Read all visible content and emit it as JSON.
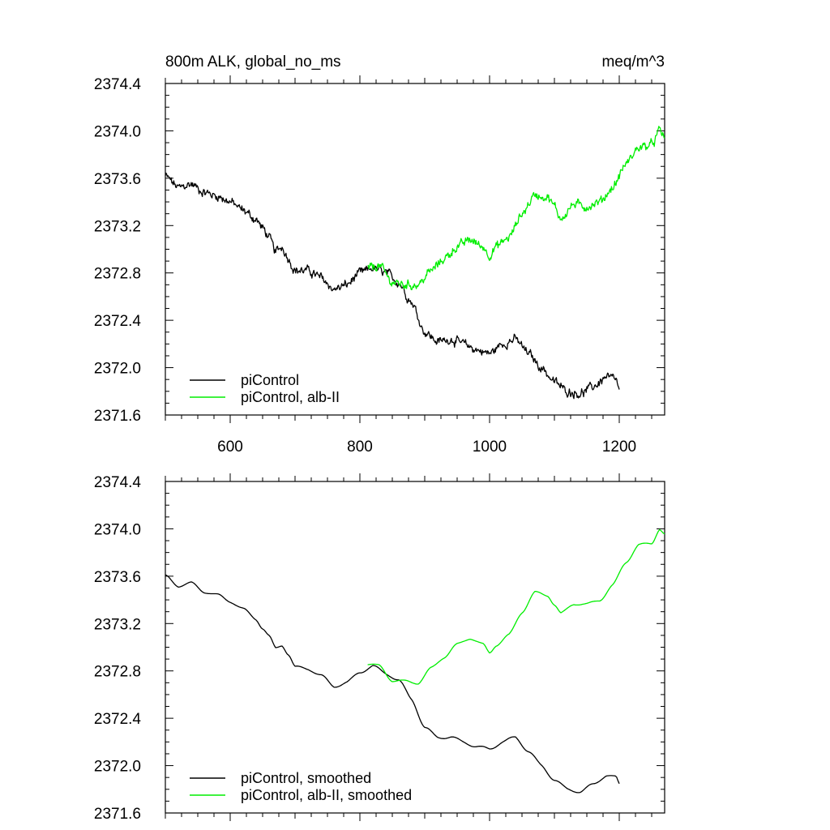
{
  "header": {
    "left": "800m ALK, global_no_ms",
    "right": "meq/m^3"
  },
  "colors": {
    "piControl": "#000000",
    "albII": "#00ee00"
  },
  "chart_data": [
    {
      "type": "line",
      "panel": "top",
      "xlim": [
        500,
        1270
      ],
      "ylim": [
        2371.6,
        2374.4
      ],
      "xticks": [
        600,
        800,
        1000,
        1200
      ],
      "xtick_labels": [
        "600",
        "800",
        "1000",
        "1200"
      ],
      "yticks": [
        2371.6,
        2372.0,
        2372.4,
        2372.8,
        2373.2,
        2373.6,
        2374.0,
        2374.4
      ],
      "ytick_labels": [
        "2371.6",
        "2372.0",
        "2372.4",
        "2372.8",
        "2373.2",
        "2373.6",
        "2374.0",
        "2374.4"
      ],
      "legend_position": "bottom-left",
      "series": [
        {
          "name": "piControl",
          "color": "#000000",
          "noisy": true,
          "x": [
            500,
            520,
            540,
            560,
            580,
            600,
            620,
            640,
            650,
            660,
            670,
            680,
            690,
            700,
            720,
            740,
            760,
            780,
            800,
            820,
            840,
            860,
            880,
            900,
            920,
            940,
            960,
            980,
            1000,
            1020,
            1040,
            1060,
            1080,
            1100,
            1120,
            1140,
            1160,
            1180,
            1195,
            1200
          ],
          "y": [
            2373.62,
            2373.52,
            2373.55,
            2373.48,
            2373.45,
            2373.4,
            2373.33,
            2373.25,
            2373.18,
            2373.1,
            2372.98,
            2373.02,
            2372.92,
            2372.82,
            2372.82,
            2372.76,
            2372.66,
            2372.7,
            2372.8,
            2372.84,
            2372.8,
            2372.72,
            2372.55,
            2372.3,
            2372.22,
            2372.24,
            2372.2,
            2372.15,
            2372.12,
            2372.2,
            2372.24,
            2372.12,
            2372.0,
            2371.88,
            2371.8,
            2371.78,
            2371.84,
            2371.92,
            2371.9,
            2371.8
          ]
        },
        {
          "name": "piControl, alb-II",
          "color": "#00ee00",
          "noisy": true,
          "x": [
            812,
            830,
            850,
            870,
            890,
            910,
            930,
            950,
            970,
            990,
            1000,
            1010,
            1030,
            1050,
            1070,
            1090,
            1100,
            1110,
            1130,
            1150,
            1170,
            1190,
            1210,
            1230,
            1250,
            1262,
            1270
          ],
          "y": [
            2372.84,
            2372.86,
            2372.72,
            2372.7,
            2372.7,
            2372.82,
            2372.92,
            2373.02,
            2373.08,
            2373.02,
            2372.95,
            2373.02,
            2373.1,
            2373.3,
            2373.46,
            2373.44,
            2373.36,
            2373.26,
            2373.38,
            2373.36,
            2373.4,
            2373.52,
            2373.72,
            2373.86,
            2373.88,
            2374.0,
            2373.94
          ]
        }
      ]
    },
    {
      "type": "line",
      "panel": "bottom",
      "xlim": [
        500,
        1270
      ],
      "ylim": [
        2371.6,
        2374.4
      ],
      "xticks": [
        600,
        800,
        1000,
        1200
      ],
      "yticks": [
        2371.6,
        2372.0,
        2372.4,
        2372.8,
        2373.2,
        2373.6,
        2374.0,
        2374.4
      ],
      "ytick_labels": [
        "2371.6",
        "2372.0",
        "2372.4",
        "2372.8",
        "2373.2",
        "2373.6",
        "2374.0",
        "2374.4"
      ],
      "legend_position": "bottom-left",
      "series": [
        {
          "name": "piControl, smoothed",
          "color": "#000000",
          "noisy": false,
          "x": [
            500,
            520,
            540,
            560,
            580,
            600,
            620,
            640,
            650,
            660,
            670,
            680,
            690,
            700,
            720,
            740,
            760,
            780,
            800,
            820,
            840,
            860,
            880,
            900,
            920,
            940,
            960,
            980,
            1000,
            1020,
            1040,
            1060,
            1080,
            1100,
            1120,
            1140,
            1160,
            1180,
            1195,
            1200
          ],
          "y": [
            2373.6,
            2373.52,
            2373.54,
            2373.47,
            2373.44,
            2373.39,
            2373.32,
            2373.24,
            2373.16,
            2373.09,
            2372.99,
            2373.02,
            2372.94,
            2372.83,
            2372.82,
            2372.76,
            2372.67,
            2372.7,
            2372.79,
            2372.84,
            2372.78,
            2372.72,
            2372.56,
            2372.32,
            2372.24,
            2372.24,
            2372.2,
            2372.16,
            2372.14,
            2372.2,
            2372.24,
            2372.12,
            2372.0,
            2371.88,
            2371.8,
            2371.78,
            2371.84,
            2371.92,
            2371.9,
            2371.84
          ]
        },
        {
          "name": "piControl, alb-II, smoothed",
          "color": "#00ee00",
          "noisy": false,
          "x": [
            812,
            830,
            850,
            870,
            890,
            910,
            930,
            950,
            970,
            990,
            1000,
            1010,
            1030,
            1050,
            1070,
            1090,
            1100,
            1110,
            1130,
            1150,
            1170,
            1190,
            1210,
            1230,
            1250,
            1262,
            1270
          ],
          "y": [
            2372.86,
            2372.84,
            2372.72,
            2372.71,
            2372.7,
            2372.82,
            2372.92,
            2373.02,
            2373.08,
            2373.02,
            2372.95,
            2373.02,
            2373.1,
            2373.3,
            2373.46,
            2373.44,
            2373.36,
            2373.28,
            2373.37,
            2373.36,
            2373.4,
            2373.52,
            2373.72,
            2373.86,
            2373.88,
            2374.0,
            2373.95
          ]
        }
      ]
    }
  ]
}
